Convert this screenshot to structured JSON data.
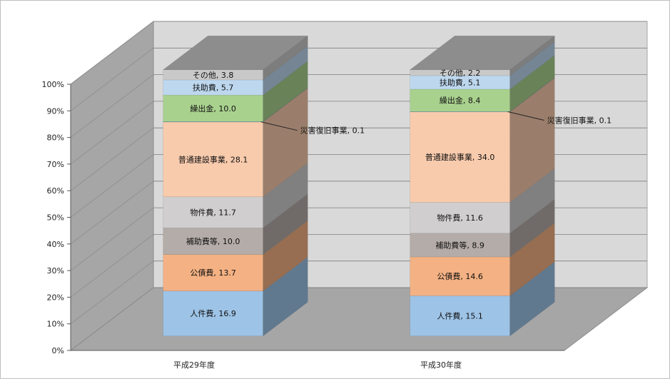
{
  "chart_data": {
    "type": "bar",
    "stacked": "percent",
    "three_d": true,
    "categories": [
      "平成29年度",
      "平成30年度"
    ],
    "y_ticks": [
      "0%",
      "10%",
      "20%",
      "30%",
      "40%",
      "50%",
      "60%",
      "70%",
      "80%",
      "90%",
      "100%"
    ],
    "ylim": [
      0,
      100
    ],
    "grid": true,
    "legend": "none",
    "series": [
      {
        "name": "人件費",
        "values": [
          16.9,
          15.1
        ],
        "color": "#9dc3e6",
        "labels": [
          "人件費, 16.9",
          "人件費, 15.1"
        ]
      },
      {
        "name": "公債費",
        "values": [
          13.7,
          14.6
        ],
        "color": "#f4b183",
        "labels": [
          "公債費, 13.7",
          "公債費, 14.6"
        ]
      },
      {
        "name": "補助費等",
        "values": [
          10.0,
          8.9
        ],
        "color": "#b4aca8",
        "labels": [
          "補助費等, 10.0",
          "補助費等, 8.9"
        ]
      },
      {
        "name": "物件費",
        "values": [
          11.7,
          11.6
        ],
        "color": "#d0cece",
        "labels": [
          "物件費, 11.7",
          "物件費, 11.6"
        ]
      },
      {
        "name": "普通建設事業",
        "values": [
          28.1,
          34.0
        ],
        "color": "#f8cbad",
        "labels": [
          "普通建設事業, 28.1",
          "普通建設事業, 34.0"
        ]
      },
      {
        "name": "災害復旧事業",
        "values": [
          0.1,
          0.1
        ],
        "color": "#5b9bd5",
        "labels": [
          "災害復旧事業, 0.1",
          "災害復旧事業, 0.1"
        ]
      },
      {
        "name": "繰出金",
        "values": [
          10.0,
          8.4
        ],
        "color": "#a9d18e",
        "labels": [
          "繰出金, 10.0",
          "繰出金, 8.4"
        ]
      },
      {
        "name": "扶助費",
        "values": [
          5.7,
          5.1
        ],
        "color": "#bdd7ee",
        "labels": [
          "扶助費, 5.7",
          "扶助費, 5.1"
        ]
      },
      {
        "name": "その他",
        "values": [
          3.8,
          2.2
        ],
        "color": "#c9c9c9",
        "labels": [
          "その他, 3.8",
          "その他, 2.2"
        ]
      }
    ]
  }
}
